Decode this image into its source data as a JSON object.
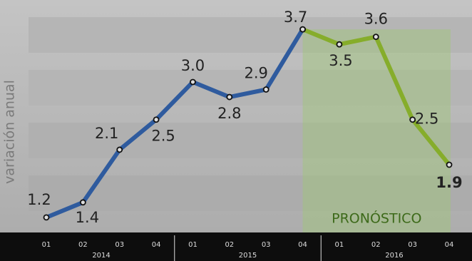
{
  "chart_data": {
    "type": "line",
    "y_label": "variación anual",
    "categories": [
      "01",
      "02",
      "03",
      "04",
      "01",
      "02",
      "03",
      "04",
      "01",
      "02",
      "03",
      "04"
    ],
    "groups": [
      "2014",
      "2015",
      "2016"
    ],
    "series": [
      {
        "color": "#2f5b9e",
        "values": [
          1.2,
          1.4,
          2.1,
          2.5,
          3.0,
          2.8,
          2.9,
          3.7,
          null,
          null,
          null,
          null
        ],
        "value_labels": [
          "1.2",
          "1.4",
          "2.1",
          "2.5",
          "3.0",
          "2.8",
          "2.9",
          "3.7",
          null,
          null,
          null,
          null
        ]
      },
      {
        "color": "#86ad2b",
        "values": [
          null,
          null,
          null,
          null,
          null,
          null,
          null,
          3.7,
          3.5,
          3.6,
          2.5,
          1.9
        ],
        "value_labels": [
          null,
          null,
          null,
          null,
          null,
          null,
          null,
          null,
          "3.5",
          "3.6",
          "2.5",
          "1.9"
        ]
      }
    ],
    "annotation": "PRONÓSTICO",
    "ylim": [
      1,
      3.9
    ]
  }
}
